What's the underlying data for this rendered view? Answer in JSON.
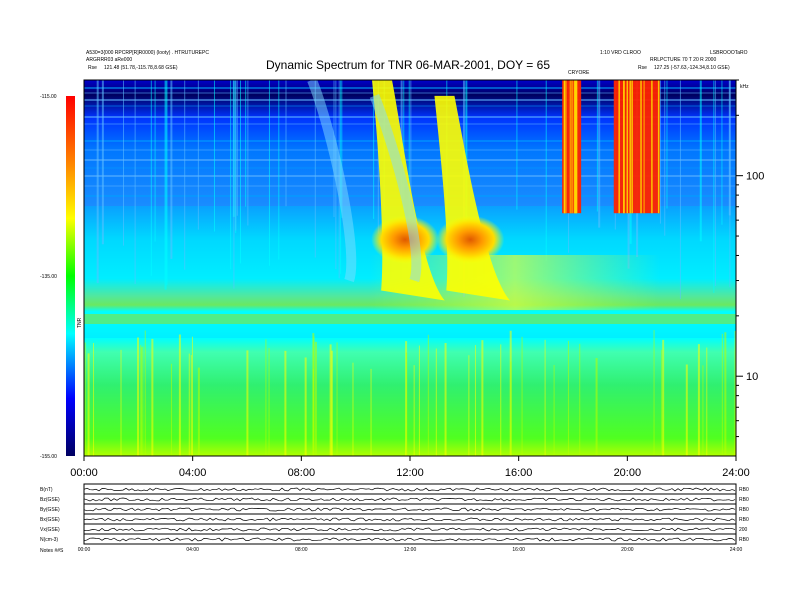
{
  "header": {
    "title": "Dynamic Spectrum for TNR 06-MAR-2001, DOY = 65",
    "left_lines": [
      "A530=3{000 RPCRP[R]R0000} (looty) . HTRUTUREPC",
      "ARGRRR03 aRe000"
    ],
    "left_position": {
      "label": "Rse",
      "value": "121.48 (51.78,-115.78,8.68 GSE)"
    },
    "right_lines": [
      "1:10 VRD CLROO",
      "RRLPCTURE 70 T 20 R 2000"
    ],
    "right_small_label": "CRYORE",
    "right_id": "LSBROOOTaRO",
    "right_position": {
      "label": "Rse",
      "value": "127.25 (-57.63,-124.34,8.10 GSE)"
    }
  },
  "chart_data": {
    "type": "heatmap",
    "title": "Dynamic Spectrum for TNR 06-MAR-2001, DOY = 65",
    "x": {
      "label": "",
      "unit": "hours UT",
      "range": [
        0,
        24
      ],
      "ticks": [
        "00:00",
        "04:00",
        "08:00",
        "12:00",
        "16:00",
        "20:00",
        "24:00"
      ]
    },
    "y": {
      "label": "kHz",
      "scale": "log",
      "range": [
        4,
        300
      ],
      "ticks": [
        100,
        10
      ]
    },
    "colorbar": {
      "label": "TNR",
      "tick_labels": [
        "-115.00",
        "-135.00",
        "-155.00"
      ],
      "range": [
        -155,
        -115
      ],
      "colors": [
        "#000060",
        "#0000ff",
        "#00ffff",
        "#00ff00",
        "#ffff00",
        "#ff8000",
        "#ff0000"
      ]
    },
    "features": [
      {
        "type": "drifting_emission",
        "start_hour": 10.6,
        "peak_hour": 11.6,
        "freq_start_khz": 300,
        "freq_end_khz": 30,
        "peak_level": -119
      },
      {
        "type": "drifting_emission",
        "start_hour": 12.9,
        "peak_hour": 14.0,
        "freq_start_khz": 250,
        "freq_end_khz": 30,
        "peak_level": -120
      },
      {
        "type": "noise_storm",
        "start_hour": 17.6,
        "end_hour": 18.3,
        "freq_low_khz": 65,
        "freq_high_khz": 300,
        "peak_level": -115
      },
      {
        "type": "noise_storm",
        "start_hour": 19.5,
        "end_hour": 21.2,
        "freq_low_khz": 65,
        "freq_high_khz": 300,
        "peak_level": -115
      }
    ]
  },
  "bottom_panels": {
    "labels": [
      "B(nT)",
      "Bz(GSE)",
      "By(GSE)",
      "Bx(GSE)",
      "Vx(GSE)",
      "N(cm-3)"
    ],
    "right_labels": [
      "RB0",
      "RB0",
      "RB0",
      "RB0",
      "200",
      "RB0"
    ],
    "x_ticks": [
      "00:00",
      "04:00",
      "08:00",
      "12:00",
      "16:00",
      "20:00",
      "24:00"
    ],
    "footer_label": "Notes  ##S"
  }
}
